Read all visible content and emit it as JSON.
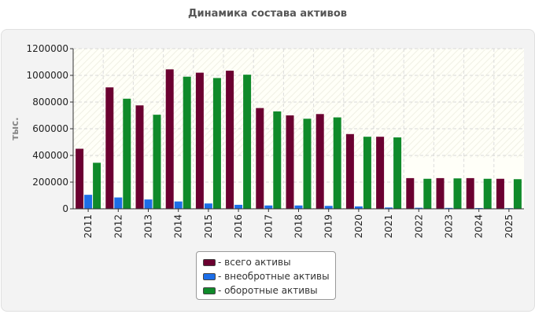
{
  "title": "Динамика состава активов",
  "chart_data": {
    "type": "bar",
    "title": "Динамика состава активов",
    "ylabel": "тыс.",
    "ylim": [
      0,
      1200000
    ],
    "yticks": [
      "0",
      "200000",
      "400000",
      "600000",
      "800000",
      "1000000",
      "1200000"
    ],
    "yticks_values": [
      0,
      200000,
      400000,
      600000,
      800000,
      1000000,
      1200000
    ],
    "categories": [
      "2011",
      "2012",
      "2013",
      "2014",
      "2015",
      "2016",
      "2017",
      "2018",
      "2019",
      "2020",
      "2021",
      "2022",
      "2023",
      "2024",
      "2025"
    ],
    "grid": true,
    "legend_position": "bottom",
    "series": [
      {
        "name": "- всего активы",
        "color": "#6b0030",
        "values": [
          450000,
          910000,
          775000,
          1045000,
          1020000,
          1035000,
          755000,
          700000,
          710000,
          560000,
          540000,
          230000,
          230000,
          230000,
          225000
        ]
      },
      {
        "name": "- внеобротные активы",
        "color": "#1c6ee8",
        "values": [
          105000,
          85000,
          70000,
          55000,
          40000,
          30000,
          25000,
          25000,
          22000,
          18000,
          10000,
          8000,
          7000,
          6000,
          5000
        ]
      },
      {
        "name": "- оборотные активы",
        "color": "#0f8a2a",
        "values": [
          345000,
          825000,
          705000,
          990000,
          980000,
          1005000,
          730000,
          675000,
          685000,
          540000,
          535000,
          225000,
          228000,
          225000,
          222000
        ]
      }
    ]
  }
}
